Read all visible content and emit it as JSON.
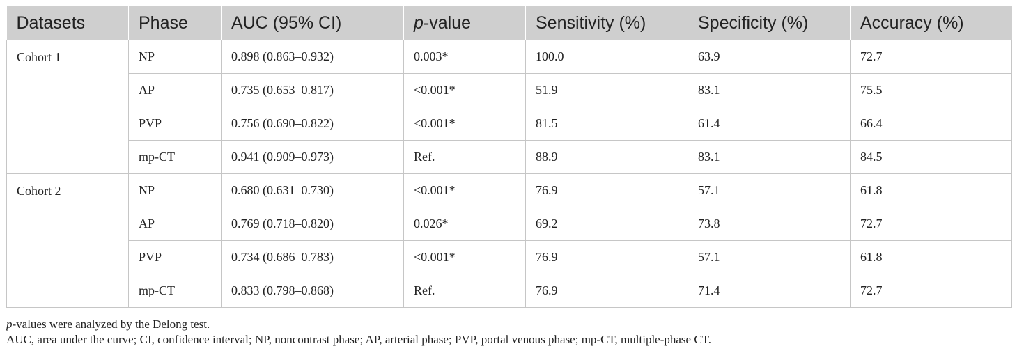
{
  "table": {
    "headers": [
      "Datasets",
      "Phase",
      "AUC (95% CI)",
      "-value",
      "Sensitivity (%)",
      "Specificity (%)",
      "Accuracy (%)"
    ],
    "pvalue_italic": "p",
    "groups": [
      {
        "dataset": "Cohort 1",
        "rows": [
          [
            "NP",
            "0.898 (0.863–0.932)",
            "0.003*",
            "100.0",
            "63.9",
            "72.7"
          ],
          [
            "AP",
            "0.735 (0.653–0.817)",
            "<0.001*",
            "51.9",
            "83.1",
            "75.5"
          ],
          [
            "PVP",
            "0.756 (0.690–0.822)",
            "<0.001*",
            "81.5",
            "61.4",
            "66.4"
          ],
          [
            "mp-CT",
            "0.941 (0.909–0.973)",
            "Ref.",
            "88.9",
            "83.1",
            "84.5"
          ]
        ]
      },
      {
        "dataset": "Cohort 2",
        "rows": [
          [
            "NP",
            "0.680 (0.631–0.730)",
            "<0.001*",
            "76.9",
            "57.1",
            "61.8"
          ],
          [
            "AP",
            "0.769 (0.718–0.820)",
            "0.026*",
            "69.2",
            "73.8",
            "72.7"
          ],
          [
            "PVP",
            "0.734 (0.686–0.783)",
            "<0.001*",
            "76.9",
            "57.1",
            "61.8"
          ],
          [
            "mp-CT",
            "0.833 (0.798–0.868)",
            "Ref.",
            "76.9",
            "71.4",
            "72.7"
          ]
        ]
      }
    ]
  },
  "footnotes": {
    "note1_italic": "p",
    "note1_rest": "-values were analyzed by the Delong test.",
    "note2": "AUC, area under the curve; CI, confidence interval; NP, noncontrast phase; AP, arterial phase; PVP, portal venous phase; mp-CT, multiple-phase CT."
  }
}
